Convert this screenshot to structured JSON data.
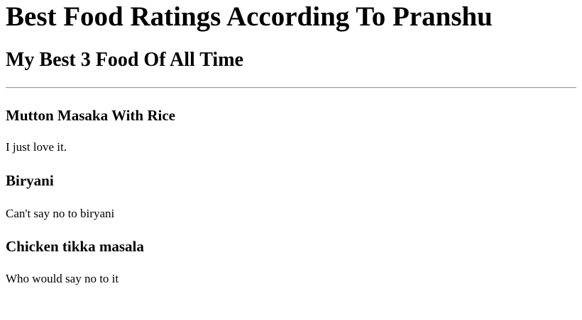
{
  "page": {
    "title": "Best Food Ratings According To Pranshu",
    "subtitle": "My Best 3 Food Of All Time"
  },
  "foods": [
    {
      "name": "Mutton Masaka With Rice",
      "comment": "I just love it."
    },
    {
      "name": "Biryani",
      "comment": "Can't say no to biryani"
    },
    {
      "name": "Chicken tikka masala",
      "comment": "Who would say no to it"
    }
  ]
}
